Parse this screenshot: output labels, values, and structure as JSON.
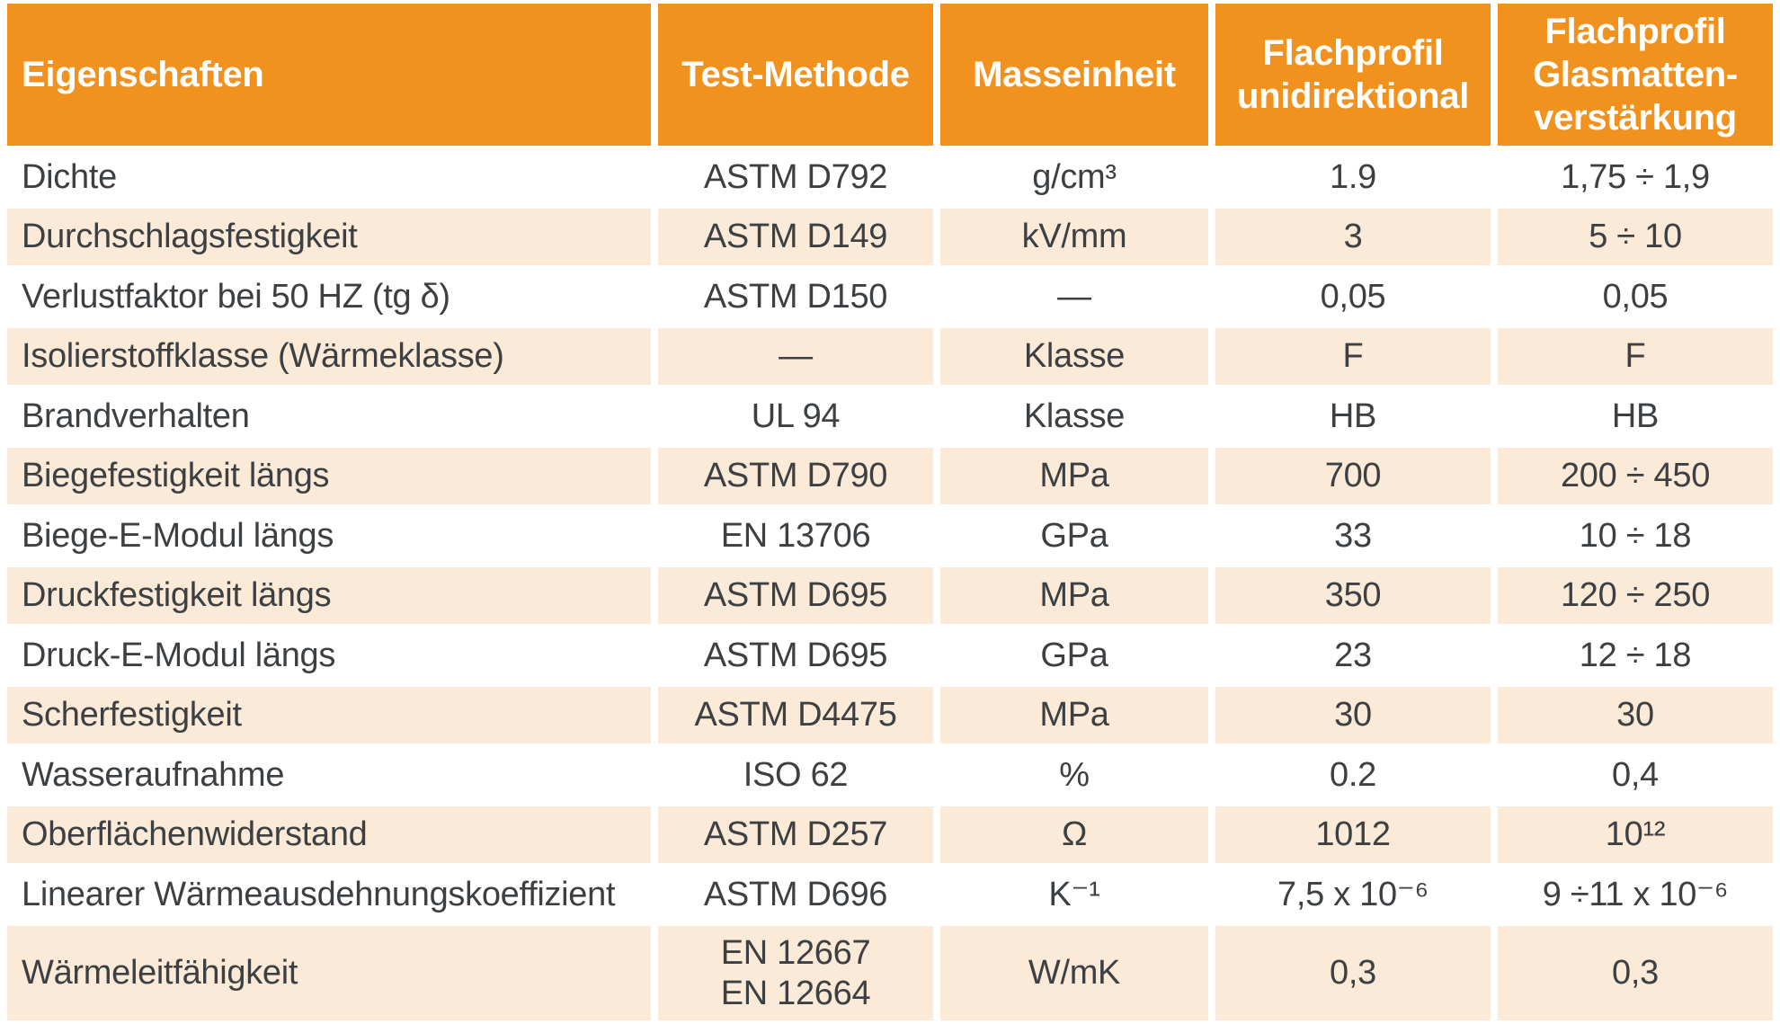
{
  "colors": {
    "header_bg": "#F1911E",
    "row_alt_bg": "#FBEAD7",
    "header_text": "#FFFFFF",
    "body_text": "#3D4043"
  },
  "table": {
    "columns": [
      "Eigenschaften",
      "Test-Methode",
      "Masseinheit",
      "Flachprofil\nunidirektional",
      "Flachprofil\nGlasmatten-\nverstärkung"
    ],
    "rows": [
      [
        "Dichte",
        "ASTM D792",
        "g/cm³",
        "1.9",
        "1,75 ÷ 1,9"
      ],
      [
        "Durchschlagsfestigkeit",
        "ASTM D149",
        "kV/mm",
        "3",
        "5 ÷ 10"
      ],
      [
        "Verlustfaktor bei 50 HZ (tg δ)",
        "ASTM D150",
        "—",
        "0,05",
        "0,05"
      ],
      [
        "Isolierstoffklasse (Wärmeklasse)",
        "—",
        "Klasse",
        "F",
        "F"
      ],
      [
        "Brandverhalten",
        "UL 94",
        "Klasse",
        "HB",
        "HB"
      ],
      [
        "Biegefestigkeit längs",
        "ASTM D790",
        "MPa",
        "700",
        "200 ÷ 450"
      ],
      [
        "Biege-E-Modul längs",
        "EN 13706",
        "GPa",
        "33",
        "10 ÷ 18"
      ],
      [
        "Druckfestigkeit längs",
        "ASTM D695",
        "MPa",
        "350",
        "120 ÷ 250"
      ],
      [
        "Druck-E-Modul längs",
        "ASTM D695",
        "GPa",
        "23",
        "12 ÷ 18"
      ],
      [
        "Scherfestigkeit",
        "ASTM D4475",
        "MPa",
        "30",
        "30"
      ],
      [
        "Wasseraufnahme",
        "ISO 62",
        "%",
        "0.2",
        "0,4"
      ],
      [
        "Oberflächenwiderstand",
        "ASTM D257",
        "Ω",
        "1012",
        "10¹²"
      ],
      [
        "Linearer Wärmeausdehnungskoeffizient",
        "ASTM D696",
        "K⁻¹",
        "7,5 x 10⁻⁶",
        "9 ÷11 x 10⁻⁶"
      ],
      [
        "Wärmeleitfähigkeit",
        "EN 12667\nEN 12664",
        "W/mK",
        "0,3",
        "0,3"
      ]
    ]
  }
}
